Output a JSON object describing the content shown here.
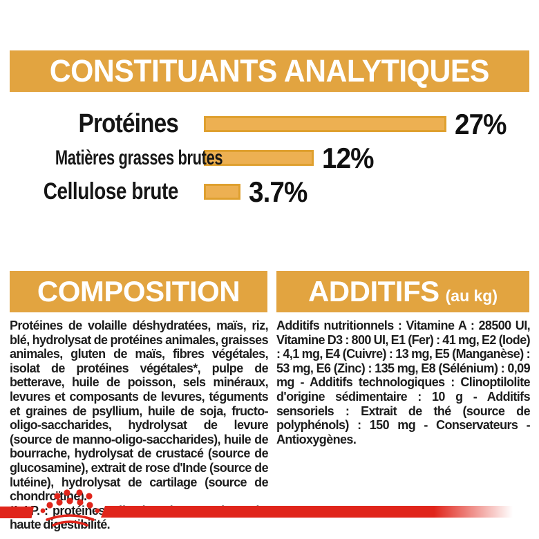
{
  "header": {
    "title": "CONSTITUANTS ANALYTIQUES"
  },
  "chart_data": {
    "type": "bar",
    "orientation": "horizontal",
    "categories": [
      "Protéines",
      "Matières grasses brutes",
      "Cellulose brute"
    ],
    "values": [
      27,
      12,
      3.7
    ],
    "value_labels": [
      "27%",
      "12%",
      "3.7%"
    ],
    "unit": "%",
    "xlim": [
      0,
      27.5
    ],
    "grid": false,
    "legend": false,
    "bar_fill": "#EDB052",
    "bar_border": "#DFA02F"
  },
  "composition": {
    "title": "COMPOSITION",
    "body": "Protéines de volaille déshydratées, maïs, riz, blé, hydrolysat de protéines animales, graisses animales, gluten de maïs, fibres végétales, isolat de protéines végétales*, pulpe de betterave, huile de poisson, sels minéraux, levures et composants de levures, téguments et graines de psyllium, huile de soja, fructo-oligo-saccharides, hydrolysat de levure (source de manno-oligo-saccharides), huile de bourrache, hydrolysat de crustacé (source de glucosamine), extrait de rose d'Inde (source de lutéine), hydrolysat de cartilage (source de chondroïtine).",
    "footnote": "*L.I.P. : protéines sélectionnées pour leur très haute digestibilité."
  },
  "additifs": {
    "title": "ADDITIFS",
    "unit_label": "(au kg)",
    "body": "Additifs nutritionnels : Vitamine A : 28500 UI, Vitamine D3 : 800 UI, E1 (Fer) : 41 mg, E2 (Iode) : 4,1 mg, E4 (Cuivre) : 13 mg, E5 (Manganèse) : 53 mg, E6 (Zinc) : 135 mg, E8 (Sélénium) : 0,09 mg - Additifs technologiques : Clinoptilolite d'origine sédimentaire : 10 g - Additifs sensoriels : Extrait de thé (source de polyphénols) : 150 mg - Conservateurs - Antioxygènes."
  },
  "footer": {
    "logo": "royal-canin-crown"
  },
  "colors": {
    "gold": "#E2A440",
    "red": "#E0251B",
    "text": "#1d1d1d"
  }
}
